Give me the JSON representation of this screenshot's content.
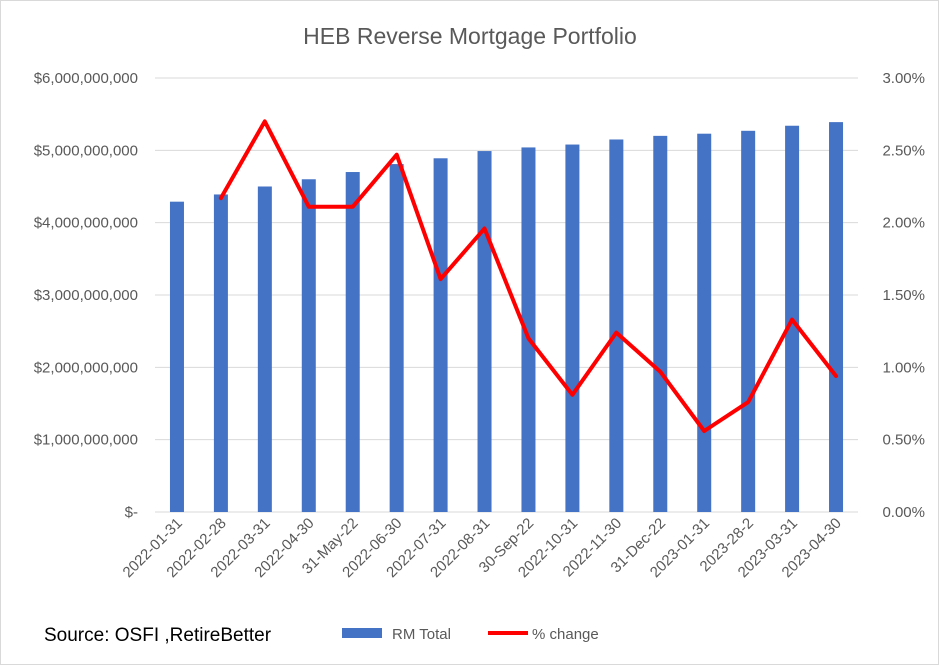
{
  "chart_data": {
    "type": "bar",
    "title": "HEB Reverse Mortgage Portfolio",
    "categories": [
      "2022-01-31",
      "2022-02-28",
      "2022-03-31",
      "2022-04-30",
      "31-May-22",
      "2022-06-30",
      "2022-07-31",
      "2022-08-31",
      "30-Sep-22",
      "2022-10-31",
      "2022-11-30",
      "31-Dec-22",
      "2023-01-31",
      "2023-28-2",
      "2023-03-31",
      "2023-04-30"
    ],
    "series": [
      {
        "name": "RM Total",
        "type": "bar",
        "axis": "left",
        "color": "#4472c4",
        "values": [
          4290000000,
          4390000000,
          4500000000,
          4600000000,
          4700000000,
          4810000000,
          4890000000,
          4990000000,
          5040000000,
          5080000000,
          5150000000,
          5200000000,
          5230000000,
          5270000000,
          5340000000,
          5390000000
        ]
      },
      {
        "name": "% change",
        "type": "line",
        "axis": "right",
        "color": "#ff0000",
        "values": [
          null,
          2.17,
          2.7,
          2.11,
          2.11,
          2.47,
          1.61,
          1.96,
          1.2,
          0.81,
          1.24,
          0.97,
          0.56,
          0.76,
          1.33,
          0.94
        ]
      }
    ],
    "y_left": {
      "ylim": [
        0,
        6000000000
      ],
      "ticks": [
        0,
        1000000000,
        2000000000,
        3000000000,
        4000000000,
        5000000000,
        6000000000
      ],
      "tick_labels": [
        "$-",
        "$1,000,000,000",
        "$2,000,000,000",
        "$3,000,000,000",
        "$4,000,000,000",
        "$5,000,000,000",
        "$6,000,000,000"
      ]
    },
    "y_right": {
      "ylim": [
        0,
        3
      ],
      "ticks": [
        0,
        0.5,
        1,
        1.5,
        2,
        2.5,
        3
      ],
      "tick_labels": [
        "0.00%",
        "0.50%",
        "1.00%",
        "1.50%",
        "2.00%",
        "2.50%",
        "3.00%"
      ]
    },
    "grid": true,
    "gridline_color": "#d9d9d9",
    "legend": "bottom"
  },
  "annotations": {
    "source": "Source: OSFI ,RetireBetter"
  }
}
